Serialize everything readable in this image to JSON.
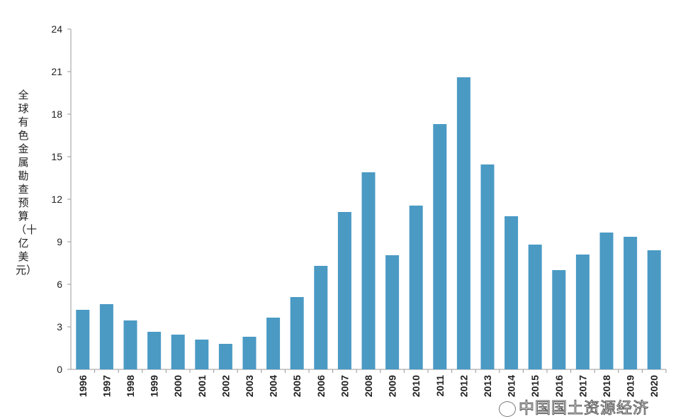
{
  "chart_data": {
    "type": "bar",
    "title": "",
    "xlabel": "",
    "ylabel": "全球有色金属勘查预算（十亿美元）",
    "ylim": [
      0,
      24
    ],
    "yticks": [
      0,
      3,
      6,
      9,
      12,
      15,
      18,
      21,
      24
    ],
    "grid": false,
    "bar_color": "#4a9ac4",
    "categories": [
      "1996",
      "1997",
      "1998",
      "1999",
      "2000",
      "2001",
      "2002",
      "2003",
      "2004",
      "2005",
      "2006",
      "2007",
      "2008",
      "2009",
      "2010",
      "2011",
      "2012",
      "2013",
      "2014",
      "2015",
      "2016",
      "2017",
      "2018",
      "2019",
      "2020"
    ],
    "values": [
      4.2,
      4.6,
      3.45,
      2.65,
      2.45,
      2.1,
      1.8,
      2.3,
      3.65,
      5.1,
      7.3,
      11.1,
      13.9,
      8.05,
      11.55,
      17.3,
      20.6,
      14.45,
      10.8,
      8.8,
      7.0,
      8.1,
      9.65,
      9.35,
      8.4
    ]
  },
  "watermark": "中国国土资源经济"
}
